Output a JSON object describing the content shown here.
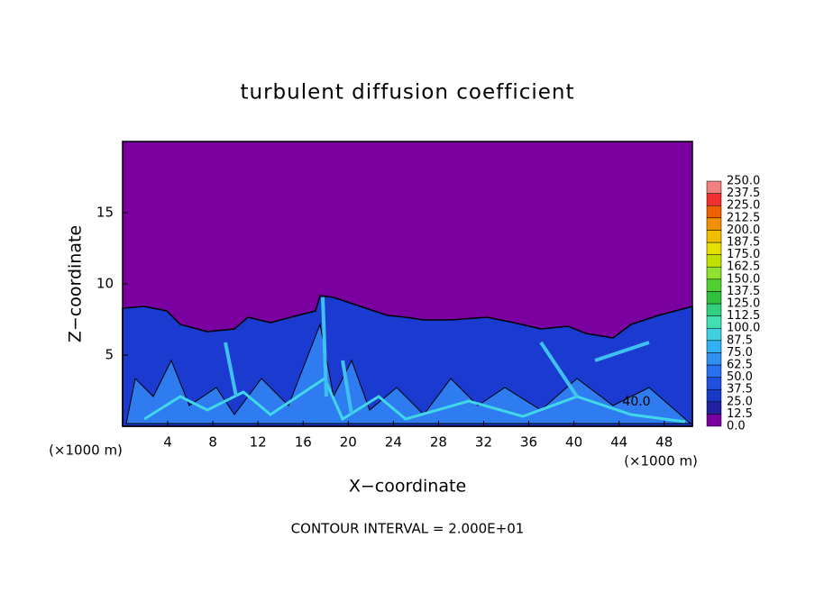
{
  "chart_data": {
    "type": "contour",
    "title": "turbulent diffusion coefficient",
    "x_label": "X−coordinate",
    "y_label": "Z−coordinate",
    "x_unit_left": "(×1000 m)",
    "x_unit_right": "(×1000 m)",
    "footer": "CONTOUR INTERVAL = 2.000E+01",
    "contour_label": "40.0",
    "xlim": [
      0,
      50.5
    ],
    "xticks": [
      4,
      8,
      12,
      16,
      20,
      24,
      28,
      32,
      36,
      40,
      44,
      48
    ],
    "ylim": [
      0,
      20
    ],
    "yticks": [
      5,
      10,
      15
    ],
    "levels": [
      {
        "value": 0,
        "label": "0.0"
      },
      12.5,
      {
        "value": 25,
        "label": "25.0"
      },
      37.5,
      {
        "value": 50,
        "label": "50.0"
      },
      62.5,
      {
        "value": 75,
        "label": "75.0"
      },
      87.5,
      {
        "value": 100,
        "label": "100.0"
      },
      112.5,
      {
        "value": 125,
        "label": "125.0"
      },
      137.5,
      {
        "value": 150,
        "label": "150.0"
      },
      162.5,
      {
        "value": 175,
        "label": "175.0"
      },
      187.5,
      {
        "value": 200,
        "label": "200.0"
      },
      212.5,
      {
        "value": 225,
        "label": "225.0"
      },
      237.5,
      {
        "value": 250,
        "label": "250.0"
      }
    ],
    "colors": [
      "#7a00a0",
      "#2020a0",
      "#1838c8",
      "#2050e0",
      "#2870f0",
      "#3090f0",
      "#30b0f0",
      "#40d0e0",
      "#40e0b0",
      "#30d080",
      "#30c040",
      "#50d030",
      "#90e030",
      "#c0e000",
      "#e8e000",
      "#f0c000",
      "#f09000",
      "#f06000",
      "#f03030",
      "#f08080"
    ]
  }
}
